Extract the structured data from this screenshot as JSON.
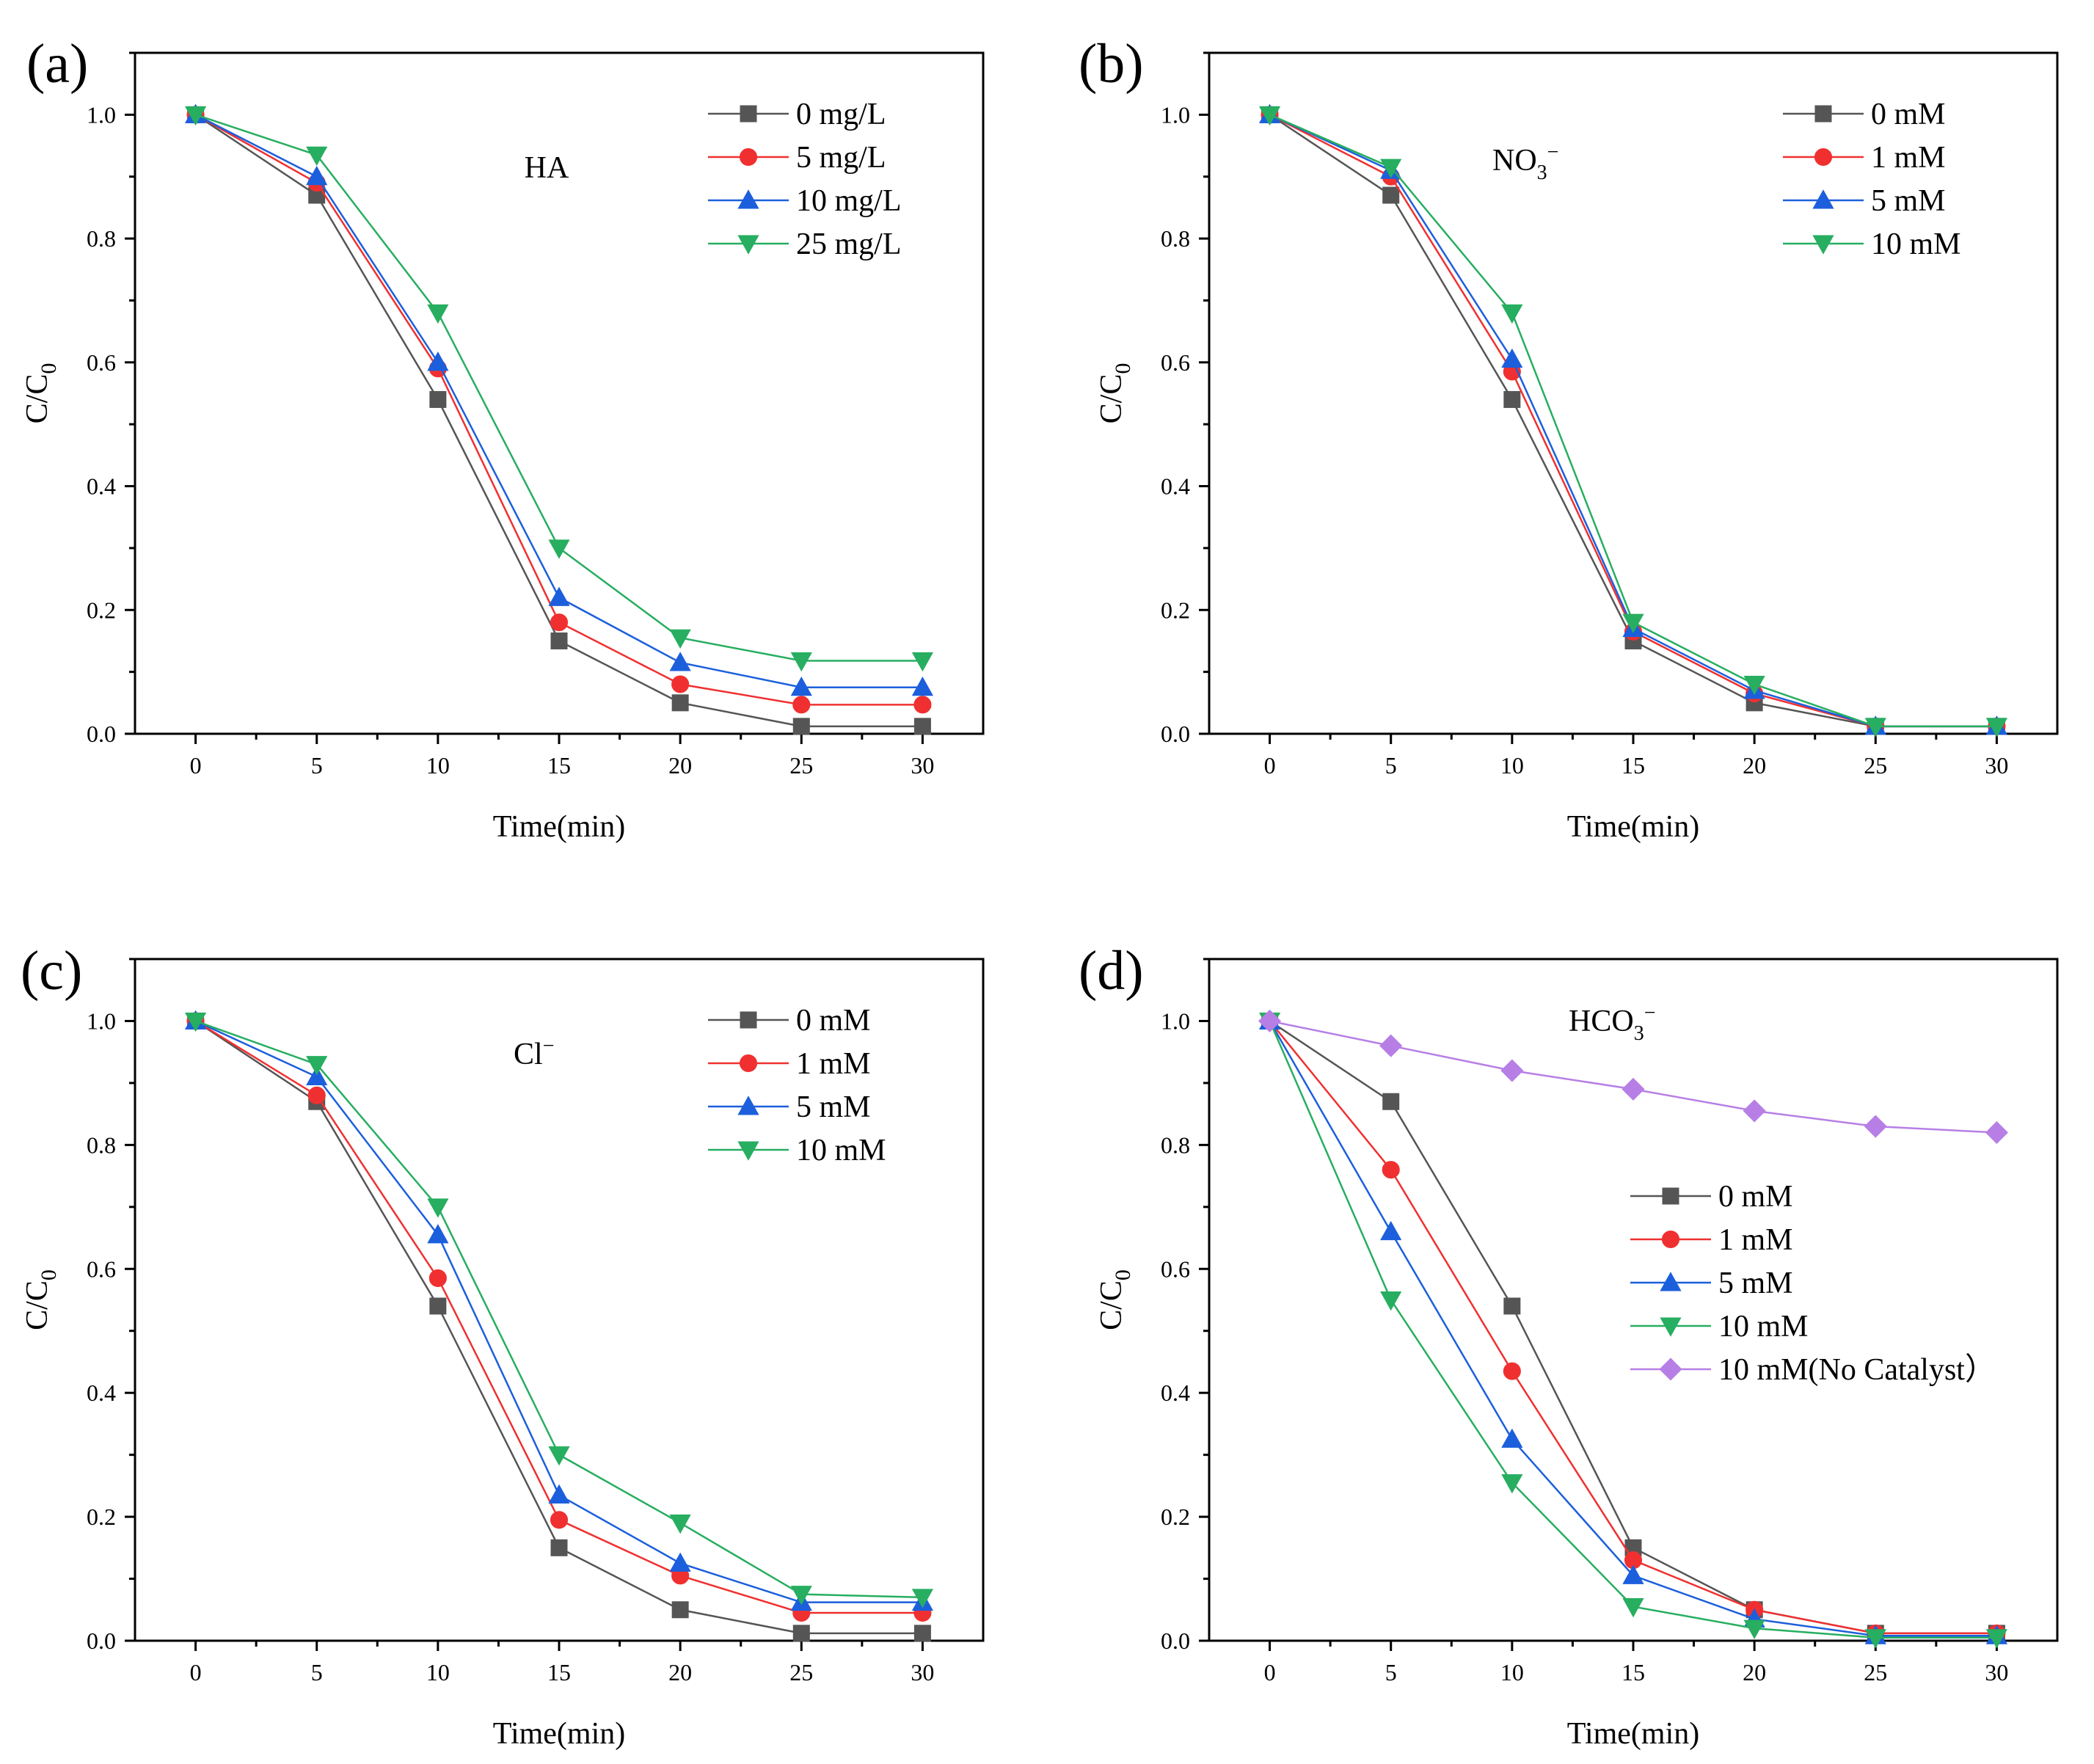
{
  "chart_data": [
    {
      "type": "line",
      "panel_label": "(a)",
      "annotation": "HA",
      "xlabel": "Time(min)",
      "ylabel": "C/C",
      "ylabel_sub": "0",
      "x": [
        0,
        5,
        10,
        15,
        20,
        25,
        30
      ],
      "xticks": [
        "0",
        "5",
        "10",
        "15",
        "20",
        "25",
        "30"
      ],
      "yticks": [
        "0.0",
        "0.2",
        "0.4",
        "0.6",
        "0.8",
        "1.0"
      ],
      "xlim": [
        -2.5,
        32.5
      ],
      "ylim": [
        0,
        1.1
      ],
      "legend_position": "top-right",
      "series": [
        {
          "name": "0 mg/L",
          "marker": "square",
          "color": "#555555",
          "values": [
            1.0,
            0.87,
            0.54,
            0.15,
            0.05,
            0.012,
            0.012
          ]
        },
        {
          "name": "5 mg/L",
          "marker": "circle",
          "color": "#f03030",
          "values": [
            1.0,
            0.89,
            0.59,
            0.18,
            0.08,
            0.047,
            0.047
          ]
        },
        {
          "name": "10 mg/L",
          "marker": "triangle-up",
          "color": "#1c5fdc",
          "values": [
            1.0,
            0.9,
            0.6,
            0.22,
            0.115,
            0.075,
            0.075
          ]
        },
        {
          "name": "25 mg/L",
          "marker": "triangle-down",
          "color": "#27ae60",
          "values": [
            1.0,
            0.935,
            0.68,
            0.3,
            0.155,
            0.118,
            0.118
          ]
        }
      ]
    },
    {
      "type": "line",
      "panel_label": "(b)",
      "annotation": "NO",
      "annotation_sub": "3",
      "annotation_sup": "−",
      "xlabel": "Time(min)",
      "ylabel": "C/C",
      "ylabel_sub": "0",
      "x": [
        0,
        5,
        10,
        15,
        20,
        25,
        30
      ],
      "xticks": [
        "0",
        "5",
        "10",
        "15",
        "20",
        "25",
        "30"
      ],
      "yticks": [
        "0.0",
        "0.2",
        "0.4",
        "0.6",
        "0.8",
        "1.0"
      ],
      "xlim": [
        -2.5,
        32.5
      ],
      "ylim": [
        0,
        1.1
      ],
      "legend_position": "top-right",
      "series": [
        {
          "name": "0 mM",
          "marker": "square",
          "color": "#555555",
          "values": [
            1.0,
            0.87,
            0.54,
            0.15,
            0.05,
            0.012,
            0.012
          ]
        },
        {
          "name": "1 mM",
          "marker": "circle",
          "color": "#f03030",
          "values": [
            1.0,
            0.9,
            0.585,
            0.165,
            0.065,
            0.012,
            0.012
          ]
        },
        {
          "name": "5 mM",
          "marker": "triangle-up",
          "color": "#1c5fdc",
          "values": [
            1.0,
            0.91,
            0.605,
            0.17,
            0.07,
            0.012,
            0.012
          ]
        },
        {
          "name": "10 mM",
          "marker": "triangle-down",
          "color": "#27ae60",
          "values": [
            1.0,
            0.915,
            0.68,
            0.18,
            0.08,
            0.012,
            0.012
          ]
        }
      ]
    },
    {
      "type": "line",
      "panel_label": "(c)",
      "annotation": "Cl",
      "annotation_sup": "−",
      "xlabel": "Time(min)",
      "ylabel": "C/C",
      "ylabel_sub": "0",
      "x": [
        0,
        5,
        10,
        15,
        20,
        25,
        30
      ],
      "xticks": [
        "0",
        "5",
        "10",
        "15",
        "20",
        "25",
        "30"
      ],
      "yticks": [
        "0.0",
        "0.2",
        "0.4",
        "0.6",
        "0.8",
        "1.0"
      ],
      "xlim": [
        -2.5,
        32.5
      ],
      "ylim": [
        0,
        1.1
      ],
      "legend_position": "top-right",
      "series": [
        {
          "name": "0 mM",
          "marker": "square",
          "color": "#555555",
          "values": [
            1.0,
            0.87,
            0.54,
            0.15,
            0.05,
            0.012,
            0.012
          ]
        },
        {
          "name": "1 mM",
          "marker": "circle",
          "color": "#f03030",
          "values": [
            1.0,
            0.88,
            0.585,
            0.195,
            0.105,
            0.045,
            0.045
          ]
        },
        {
          "name": "5 mM",
          "marker": "triangle-up",
          "color": "#1c5fdc",
          "values": [
            1.0,
            0.91,
            0.655,
            0.235,
            0.125,
            0.062,
            0.062
          ]
        },
        {
          "name": "10 mM",
          "marker": "triangle-down",
          "color": "#27ae60",
          "values": [
            1.0,
            0.93,
            0.7,
            0.3,
            0.19,
            0.075,
            0.07
          ]
        }
      ]
    },
    {
      "type": "line",
      "panel_label": "(d)",
      "annotation": "HCO",
      "annotation_sub": "3",
      "annotation_sup": "−",
      "xlabel": "Time(min)",
      "ylabel": "C/C",
      "ylabel_sub": "0",
      "x": [
        0,
        5,
        10,
        15,
        20,
        25,
        30
      ],
      "xticks": [
        "0",
        "5",
        "10",
        "15",
        "20",
        "25",
        "30"
      ],
      "yticks": [
        "0.0",
        "0.2",
        "0.4",
        "0.6",
        "0.8",
        "1.0"
      ],
      "xlim": [
        -2.5,
        32.5
      ],
      "ylim": [
        0,
        1.1
      ],
      "legend_position": "center-right",
      "series": [
        {
          "name": "0 mM",
          "marker": "square",
          "color": "#555555",
          "values": [
            1.0,
            0.87,
            0.54,
            0.15,
            0.05,
            0.012,
            0.012
          ]
        },
        {
          "name": "1 mM",
          "marker": "circle",
          "color": "#f03030",
          "values": [
            1.0,
            0.76,
            0.435,
            0.13,
            0.05,
            0.012,
            0.012
          ]
        },
        {
          "name": "5 mM",
          "marker": "triangle-up",
          "color": "#1c5fdc",
          "values": [
            1.0,
            0.66,
            0.325,
            0.105,
            0.035,
            0.008,
            0.008
          ]
        },
        {
          "name": "10 mM",
          "marker": "triangle-down",
          "color": "#27ae60",
          "values": [
            1.0,
            0.55,
            0.255,
            0.055,
            0.02,
            0.005,
            0.005
          ]
        },
        {
          "name": "10 mM(No Catalyst）",
          "marker": "diamond",
          "color": "#b77fe6",
          "values": [
            1.0,
            0.96,
            0.92,
            0.89,
            0.855,
            0.83,
            0.82
          ]
        }
      ]
    }
  ]
}
